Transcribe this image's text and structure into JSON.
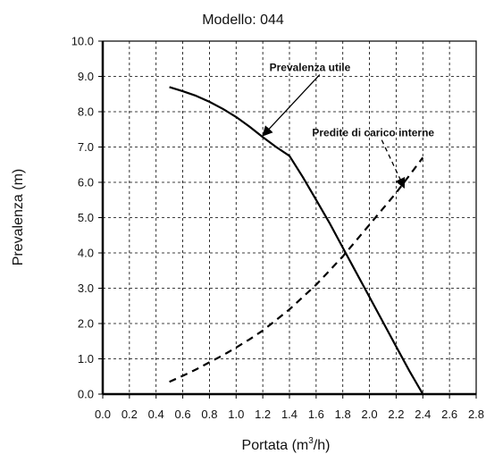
{
  "chart_data": {
    "type": "line",
    "title": "Modello: 044",
    "xlabel": "Portata (m",
    "xlabel_sup": "3",
    "xlabel_end": "/h)",
    "ylabel": "Prevalenza (m)",
    "xlim": [
      0.0,
      2.8
    ],
    "ylim": [
      0.0,
      10.0
    ],
    "x_ticks": [
      "0.0",
      "0.2",
      "0.4",
      "0.6",
      "0.8",
      "1.0",
      "1.2",
      "1.4",
      "1.6",
      "1.8",
      "2.0",
      "2.2",
      "2.4",
      "2.6",
      "2.8"
    ],
    "y_ticks": [
      "0.0",
      "1.0",
      "2.0",
      "3.0",
      "4.0",
      "5.0",
      "6.0",
      "7.0",
      "8.0",
      "9.0",
      "10.0"
    ],
    "grid": true,
    "series": [
      {
        "name": "Prevalenza utile",
        "style": "solid",
        "color": "#000000",
        "x": [
          0.5,
          0.6,
          0.7,
          0.8,
          0.9,
          1.0,
          1.1,
          1.2,
          1.3,
          1.4,
          1.5,
          1.6,
          1.7,
          1.8,
          1.9,
          2.0,
          2.1,
          2.2,
          2.3,
          2.4
        ],
        "y": [
          8.7,
          8.58,
          8.45,
          8.28,
          8.08,
          7.85,
          7.58,
          7.28,
          7.0,
          6.75,
          6.15,
          5.5,
          4.85,
          4.15,
          3.45,
          2.75,
          2.05,
          1.35,
          0.65,
          0.0
        ]
      },
      {
        "name": "Predite di carico interne",
        "style": "dashed",
        "color": "#000000",
        "x": [
          0.5,
          0.6,
          0.7,
          0.8,
          0.9,
          1.0,
          1.1,
          1.2,
          1.3,
          1.4,
          1.5,
          1.6,
          1.7,
          1.8,
          1.9,
          2.0,
          2.1,
          2.2,
          2.3,
          2.4
        ],
        "y": [
          0.35,
          0.52,
          0.7,
          0.9,
          1.1,
          1.32,
          1.55,
          1.8,
          2.1,
          2.4,
          2.75,
          3.1,
          3.5,
          3.9,
          4.35,
          4.8,
          5.25,
          5.7,
          6.2,
          6.7
        ]
      }
    ],
    "annotations": [
      {
        "text": "Prevalenza utile",
        "text_x": 1.25,
        "text_y": 9.15,
        "arrow_to_x": 1.2,
        "arrow_to_y": 7.32
      },
      {
        "text": "Predite di carico interne",
        "text_x": 1.57,
        "text_y": 7.3,
        "arrow_to_x": 2.26,
        "arrow_to_y": 5.85
      }
    ]
  }
}
